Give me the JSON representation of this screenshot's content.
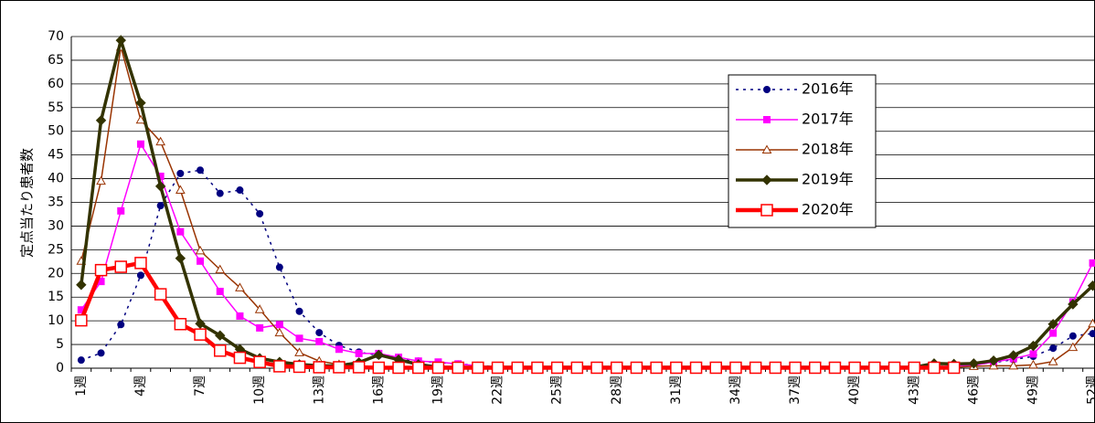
{
  "chart_data": {
    "type": "line",
    "ylabel": "定点当たり患者数",
    "categories": [
      "1週",
      null,
      null,
      "4週",
      null,
      null,
      "7週",
      null,
      null,
      "10週",
      null,
      null,
      "13週",
      null,
      null,
      "16週",
      null,
      null,
      "19週",
      null,
      null,
      "22週",
      null,
      null,
      "25週",
      null,
      null,
      "28週",
      null,
      null,
      "31週",
      null,
      null,
      "34週",
      null,
      null,
      "37週",
      null,
      null,
      "40週",
      null,
      null,
      "43週",
      null,
      null,
      "46週",
      null,
      null,
      "49週",
      null,
      null,
      "52週"
    ],
    "ylim": [
      0,
      70
    ],
    "yticks": [
      0,
      5,
      10,
      15,
      20,
      25,
      30,
      35,
      40,
      45,
      50,
      55,
      60,
      65,
      70
    ],
    "grid": true,
    "legend": "upper right",
    "series": [
      {
        "name": "2016年",
        "color": "#000080",
        "marker": "circle",
        "dashed": true,
        "line_width": 1.5,
        "values": [
          1.7,
          3.2,
          9.2,
          19.6,
          34.3,
          41.1,
          41.8,
          36.9,
          37.6,
          32.6,
          21.3,
          12.0,
          7.5,
          4.8,
          3.4,
          2.7,
          2.0,
          1.5,
          1.2,
          0.9,
          0.6,
          0.3,
          0.3,
          0.3,
          0.3,
          0.3,
          0.3,
          0.3,
          0.3,
          0.3,
          0.3,
          0.3,
          0.3,
          0.3,
          0.3,
          0.3,
          0.3,
          0.3,
          0.3,
          0.3,
          0.3,
          0.3,
          0.3,
          0.3,
          0.5,
          0.7,
          1.2,
          1.8,
          2.5,
          4.2,
          6.8,
          7.3
        ]
      },
      {
        "name": "2017年",
        "color": "#ff00ff",
        "marker": "square",
        "dashed": false,
        "line_width": 1.5,
        "values": [
          12.3,
          18.3,
          33.2,
          47.3,
          40.5,
          28.8,
          22.6,
          16.2,
          11.0,
          8.5,
          9.2,
          6.3,
          5.6,
          4.0,
          3.1,
          3.1,
          2.3,
          1.5,
          1.3,
          0.9,
          0.5,
          0.2,
          0.2,
          0.2,
          0.2,
          0.2,
          0.2,
          0.2,
          0.2,
          0.2,
          0.2,
          0.2,
          0.2,
          0.2,
          0.2,
          0.2,
          0.2,
          0.2,
          0.2,
          0.2,
          0.2,
          0.2,
          0.2,
          0.2,
          0.5,
          0.6,
          1.3,
          2.0,
          3.0,
          7.4,
          14.0,
          22.2
        ]
      },
      {
        "name": "2018年",
        "color": "#993300",
        "marker": "triangle",
        "dashed": false,
        "line_width": 1.5,
        "values": [
          22.6,
          39.5,
          67.8,
          52.4,
          47.8,
          37.6,
          24.8,
          20.8,
          17.0,
          12.4,
          7.5,
          3.3,
          1.5,
          0.8,
          0.5,
          0.2,
          0.2,
          0.2,
          0.2,
          0.2,
          0.2,
          0.2,
          0.2,
          0.2,
          0.2,
          0.2,
          0.2,
          0.2,
          0.2,
          0.2,
          0.2,
          0.2,
          0.2,
          0.2,
          0.2,
          0.2,
          0.2,
          0.2,
          0.2,
          0.2,
          0.2,
          0.2,
          0.2,
          0.2,
          0.2,
          0.4,
          0.5,
          0.5,
          0.7,
          1.4,
          4.4,
          9.4
        ]
      },
      {
        "name": "2019年",
        "color": "#333300",
        "marker": "diamond",
        "dashed": false,
        "line_width": 3.5,
        "values": [
          17.6,
          52.3,
          69.2,
          56.0,
          38.4,
          23.2,
          9.4,
          6.9,
          4.0,
          2.1,
          1.3,
          0.8,
          0.5,
          0.5,
          1.2,
          2.8,
          1.8,
          0.8,
          0.2,
          0.2,
          0.2,
          0.2,
          0.2,
          0.2,
          0.2,
          0.2,
          0.2,
          0.2,
          0.2,
          0.2,
          0.2,
          0.2,
          0.2,
          0.2,
          0.2,
          0.2,
          0.2,
          0.2,
          0.2,
          0.2,
          0.2,
          0.2,
          0.2,
          1.0,
          0.9,
          1.0,
          1.6,
          2.7,
          4.7,
          9.3,
          13.5,
          17.4
        ]
      },
      {
        "name": "2020年",
        "color": "#ff0000",
        "marker": "open-square",
        "dashed": false,
        "line_width": 4.5,
        "values": [
          10.1,
          20.7,
          21.4,
          22.2,
          15.6,
          9.3,
          7.1,
          3.7,
          2.2,
          1.3,
          0.4,
          0.3,
          0.2,
          0.2,
          0.2,
          0.1,
          0.1,
          0.1,
          0.1,
          0.1,
          0.1,
          0.1,
          0.1,
          0.1,
          0.1,
          0.1,
          0.1,
          0.1,
          0.1,
          0.1,
          0.1,
          0.1,
          0.1,
          0.1,
          0.1,
          0.1,
          0.1,
          0.1,
          0.1,
          0.1,
          0.1,
          0.1,
          0.1,
          0.1,
          0.1,
          null,
          null,
          null,
          null,
          null,
          null,
          null
        ]
      }
    ]
  }
}
